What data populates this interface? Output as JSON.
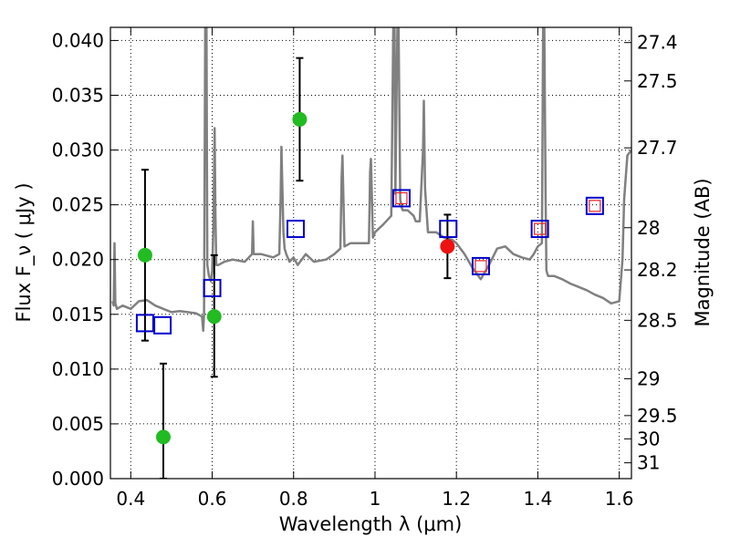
{
  "chart_data": {
    "type": "scatter",
    "title": "",
    "xlabel": "Wavelength  λ (μm)",
    "ylabel": "Flux  F_ν  ( μJy )",
    "ylabel_right": "Magnitude (AB)",
    "xlim": [
      0.35,
      1.63
    ],
    "ylim": [
      0.0,
      0.0412
    ],
    "x_ticks": [
      0.4,
      0.6,
      0.8,
      1.0,
      1.2,
      1.4,
      1.6
    ],
    "x_tick_labels": [
      "0.4",
      "0.6",
      "0.8",
      "1",
      "1.2",
      "1.4",
      "1.6"
    ],
    "y_ticks": [
      0.0,
      0.005,
      0.01,
      0.015,
      0.02,
      0.025,
      0.03,
      0.035,
      0.04
    ],
    "y_tick_labels": [
      "0.000",
      "0.005",
      "0.010",
      "0.015",
      "0.020",
      "0.025",
      "0.030",
      "0.035",
      "0.040"
    ],
    "right_ticks": [
      {
        "label": "27.4",
        "mag": 27.4
      },
      {
        "label": "27.5",
        "mag": 27.5
      },
      {
        "label": "27.7",
        "mag": 27.7
      },
      {
        "label": "28",
        "mag": 28.0
      },
      {
        "label": "28.2",
        "mag": 28.2
      },
      {
        "label": "28.5",
        "mag": 28.5
      },
      {
        "label": "29",
        "mag": 29.0
      },
      {
        "label": "29.5",
        "mag": 29.5
      },
      {
        "label": "30",
        "mag": 30.0
      },
      {
        "label": "31",
        "mag": 31.0
      }
    ],
    "grid": true,
    "colors": {
      "spectrum": "#808080",
      "observed_green": "#22bb22",
      "observed_red": "#ee1111",
      "model_blue": "#0000cc",
      "model_red": "#ee2222",
      "errorbar": "#000000"
    },
    "series": [
      {
        "name": "template spectrum",
        "kind": "line",
        "x": [
          0.355,
          0.358,
          0.36,
          0.362,
          0.364,
          0.366,
          0.38,
          0.4,
          0.42,
          0.44,
          0.46,
          0.48,
          0.5,
          0.52,
          0.54,
          0.56,
          0.575,
          0.578,
          0.58,
          0.583,
          0.586,
          0.588,
          0.592,
          0.597,
          0.6,
          0.603,
          0.606,
          0.608,
          0.61,
          0.615,
          0.63,
          0.65,
          0.68,
          0.698,
          0.7,
          0.702,
          0.72,
          0.75,
          0.765,
          0.768,
          0.77,
          0.775,
          0.778,
          0.782,
          0.79,
          0.8,
          0.81,
          0.83,
          0.85,
          0.88,
          0.9,
          0.915,
          0.918,
          0.92,
          0.925,
          0.94,
          0.96,
          0.985,
          0.988,
          0.99,
          0.995,
          1.0,
          1.02,
          1.04,
          1.045,
          1.048,
          1.05,
          1.055,
          1.058,
          1.062,
          1.065,
          1.068,
          1.08,
          1.095,
          1.1,
          1.11,
          1.118,
          1.12,
          1.123,
          1.13,
          1.15,
          1.17,
          1.19,
          1.2,
          1.22,
          1.24,
          1.26,
          1.28,
          1.3,
          1.32,
          1.34,
          1.36,
          1.38,
          1.39,
          1.4,
          1.41,
          1.413,
          1.416,
          1.419,
          1.421,
          1.425,
          1.44,
          1.46,
          1.48,
          1.5,
          1.52,
          1.54,
          1.56,
          1.58,
          1.6,
          1.608,
          1.612,
          1.62,
          1.63
        ],
        "y": [
          0.0162,
          0.0158,
          0.0215,
          0.016,
          0.0158,
          0.0155,
          0.0158,
          0.0155,
          0.0162,
          0.0163,
          0.0158,
          0.0155,
          0.0152,
          0.0153,
          0.0152,
          0.0151,
          0.0148,
          0.0135,
          0.015,
          0.0412,
          0.0412,
          0.0195,
          0.0185,
          0.018,
          0.019,
          0.023,
          0.032,
          0.024,
          0.0195,
          0.0195,
          0.0198,
          0.02,
          0.0198,
          0.0205,
          0.0235,
          0.0205,
          0.0205,
          0.0202,
          0.0205,
          0.0255,
          0.0303,
          0.0225,
          0.021,
          0.0205,
          0.0198,
          0.0202,
          0.0195,
          0.0205,
          0.0198,
          0.02,
          0.0205,
          0.021,
          0.0275,
          0.0295,
          0.0212,
          0.0215,
          0.0215,
          0.0215,
          0.028,
          0.0292,
          0.022,
          0.0225,
          0.0232,
          0.024,
          0.0412,
          0.0412,
          0.026,
          0.0412,
          0.0412,
          0.0255,
          0.0248,
          0.0245,
          0.0245,
          0.024,
          0.0235,
          0.0235,
          0.03,
          0.0345,
          0.0265,
          0.0225,
          0.0225,
          0.022,
          0.0218,
          0.0215,
          0.0205,
          0.0192,
          0.0182,
          0.0195,
          0.021,
          0.0212,
          0.0205,
          0.0202,
          0.02,
          0.0205,
          0.0212,
          0.0215,
          0.0412,
          0.0412,
          0.026,
          0.019,
          0.0185,
          0.0185,
          0.0182,
          0.0178,
          0.0175,
          0.0172,
          0.0168,
          0.0165,
          0.016,
          0.0162,
          0.02,
          0.0255,
          0.0295,
          0.03
        ]
      },
      {
        "name": "observed photometry",
        "kind": "points",
        "points": [
          {
            "x": 0.435,
            "y": 0.0204,
            "yerr_low": 0.0078,
            "yerr_high": 0.0078
          },
          {
            "x": 0.48,
            "y": 0.0038,
            "yerr_low": 0.0038,
            "yerr_high": 0.0067
          },
          {
            "x": 0.605,
            "y": 0.0148,
            "yerr_low": 0.0055,
            "yerr_high": 0.0056
          },
          {
            "x": 0.815,
            "y": 0.0328,
            "yerr_low": 0.0056,
            "yerr_high": 0.0056
          }
        ]
      },
      {
        "name": "detection",
        "kind": "points",
        "points": [
          {
            "x": 1.178,
            "y": 0.0212,
            "yerr_low": 0.0029,
            "yerr_high": 0.0029
          }
        ]
      },
      {
        "name": "model magnitudes",
        "kind": "squares",
        "points": [
          {
            "x": 0.435,
            "y": 0.0142
          },
          {
            "x": 0.478,
            "y": 0.014
          },
          {
            "x": 0.6,
            "y": 0.0174
          },
          {
            "x": 0.805,
            "y": 0.0228
          },
          {
            "x": 1.065,
            "y": 0.0256
          },
          {
            "x": 1.18,
            "y": 0.0228
          },
          {
            "x": 1.26,
            "y": 0.0194
          },
          {
            "x": 1.405,
            "y": 0.0228
          },
          {
            "x": 1.54,
            "y": 0.0249
          }
        ]
      },
      {
        "name": "model magnitudes (inner)",
        "kind": "small-squares",
        "points": [
          {
            "x": 1.065,
            "y": 0.0256
          },
          {
            "x": 1.26,
            "y": 0.0194
          },
          {
            "x": 1.405,
            "y": 0.0228
          },
          {
            "x": 1.54,
            "y": 0.0249
          }
        ]
      }
    ]
  }
}
